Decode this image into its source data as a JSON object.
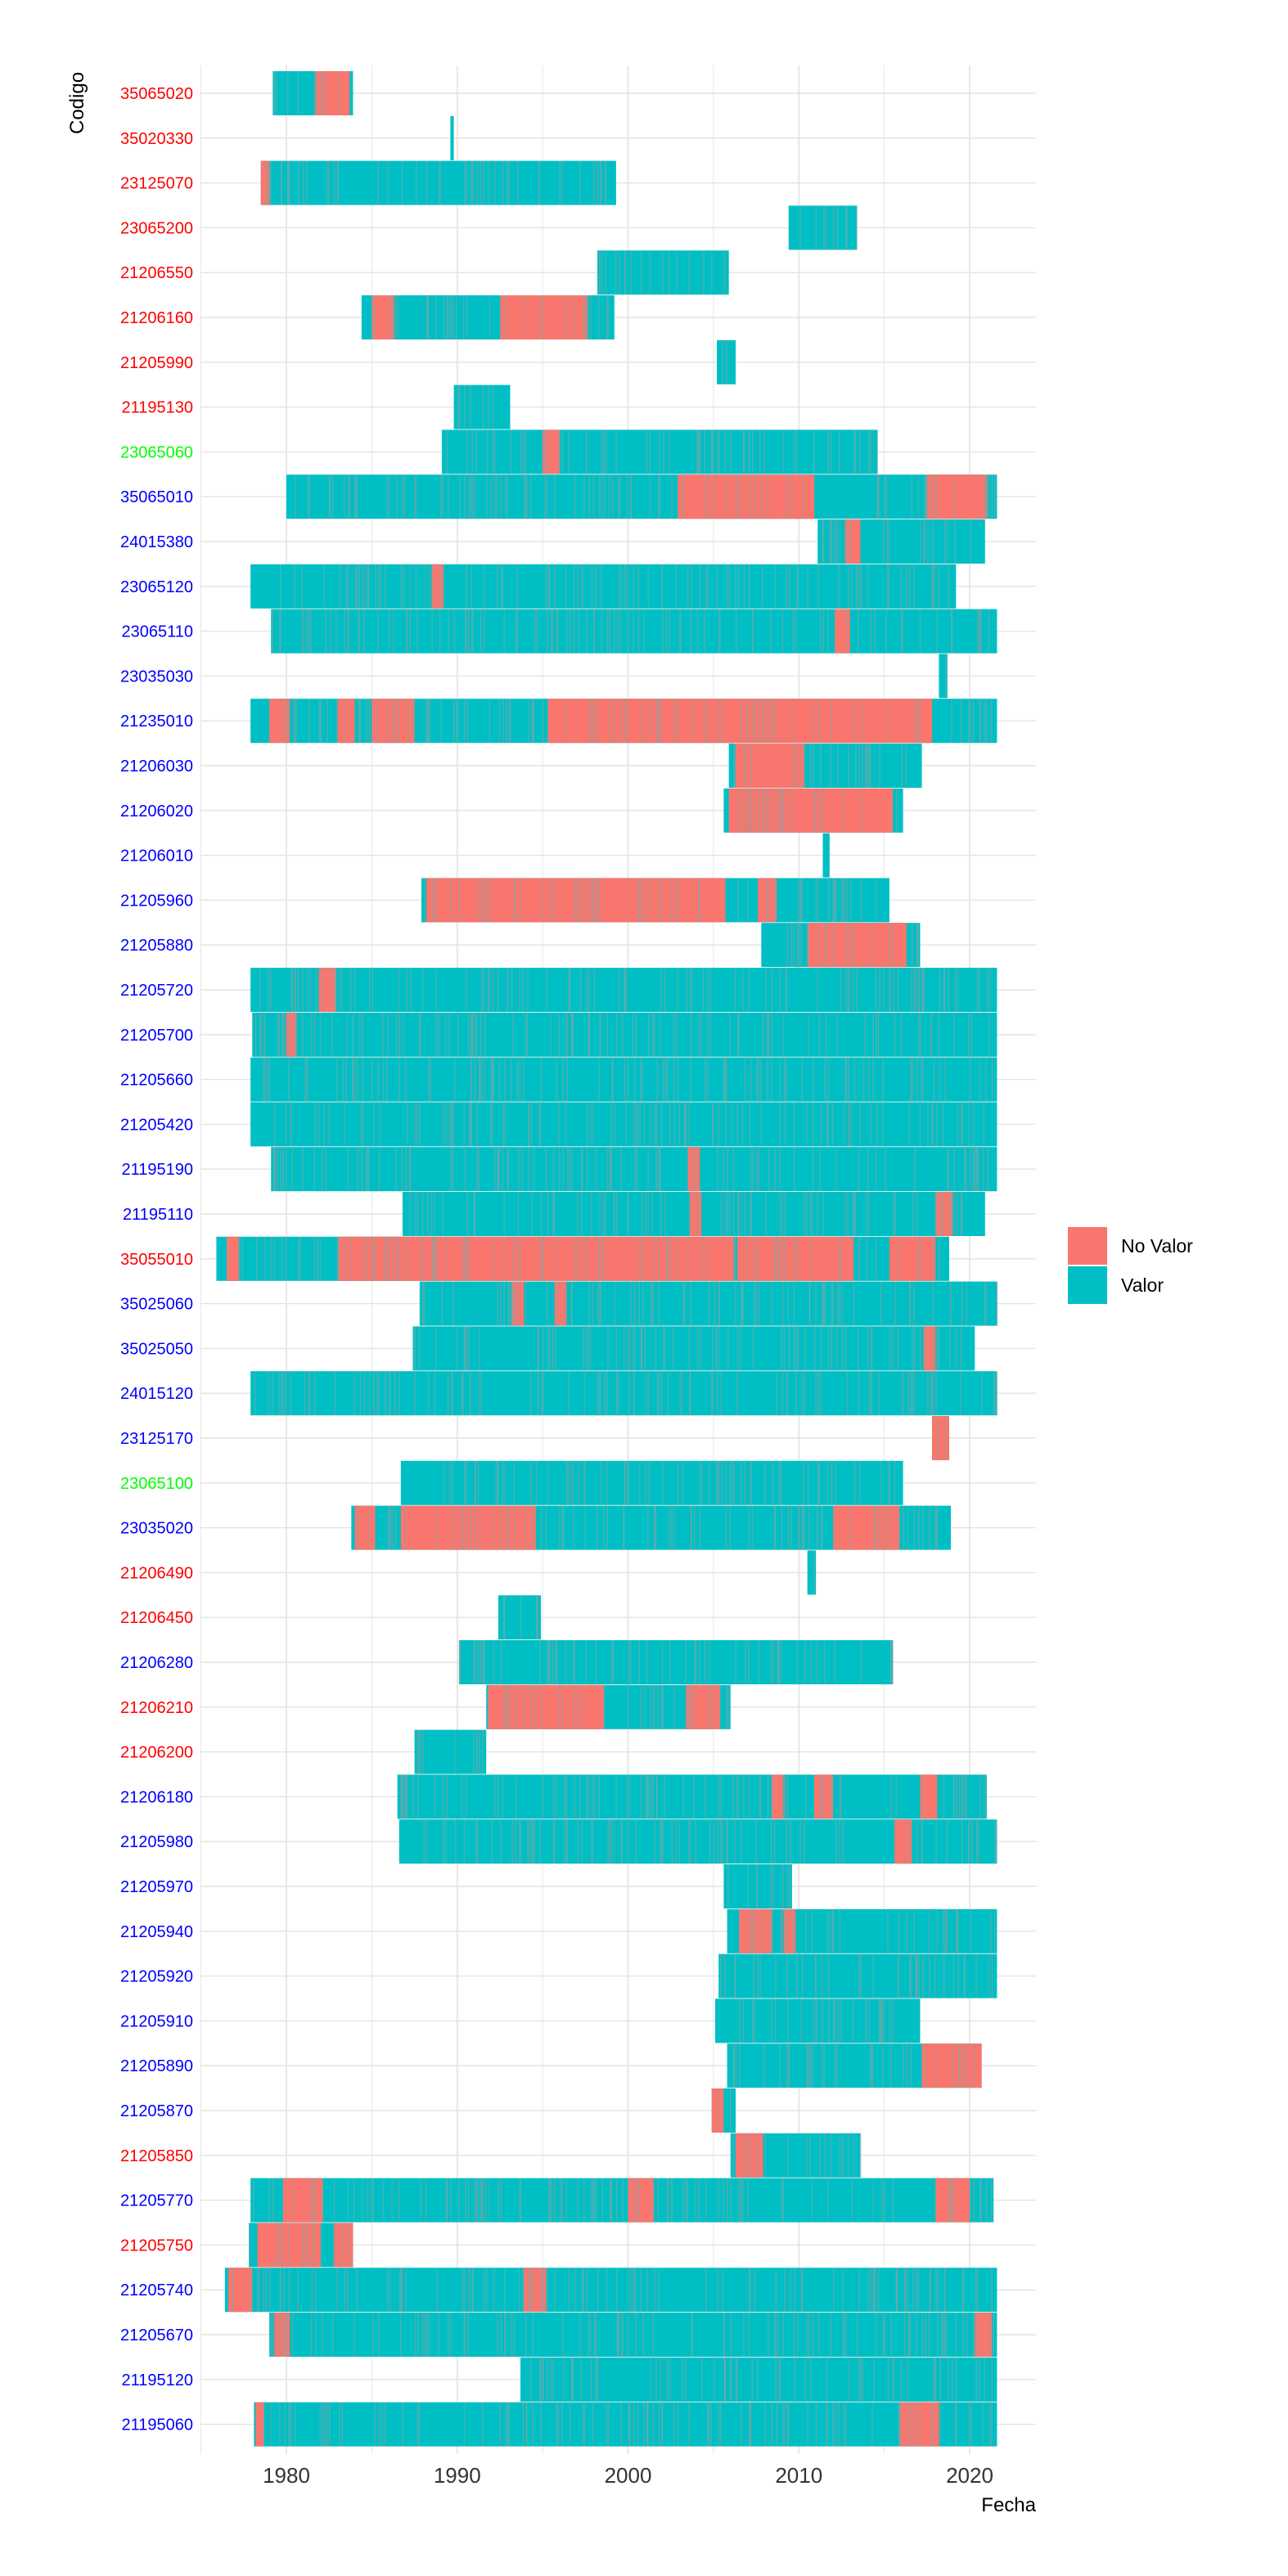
{
  "chart_data": {
    "type": "timeline",
    "ylabel": "Codigo",
    "xlabel": "Fecha",
    "xlim": [
      1975,
      2024
    ],
    "x_ticks": [
      1980,
      1990,
      2000,
      2010,
      2020
    ],
    "legend": {
      "position": "right",
      "items": [
        {
          "label": "No Valor",
          "color": "#F8766D"
        },
        {
          "label": "Valor",
          "color": "#00BFC4"
        }
      ]
    },
    "label_colors": {
      "red": "#FF0000",
      "blue": "#0000FF",
      "green": "#00FF00"
    },
    "series": [
      {
        "code": "35065020",
        "label_color": "red",
        "start": 1979.2,
        "end": 1983.9,
        "no_valor": [
          [
            1981.7,
            1983.7
          ]
        ]
      },
      {
        "code": "35020330",
        "label_color": "red",
        "start": 1989.6,
        "end": 1989.8,
        "no_valor": []
      },
      {
        "code": "23125070",
        "label_color": "red",
        "start": 1978.5,
        "end": 1999.3,
        "no_valor": [
          [
            1978.5,
            1979.0
          ]
        ]
      },
      {
        "code": "23065200",
        "label_color": "red",
        "start": 2009.4,
        "end": 2013.4,
        "no_valor": []
      },
      {
        "code": "21206550",
        "label_color": "red",
        "start": 1998.2,
        "end": 2005.9,
        "no_valor": []
      },
      {
        "code": "21206160",
        "label_color": "red",
        "start": 1984.4,
        "end": 1999.2,
        "no_valor": [
          [
            1985.0,
            1986.3
          ],
          [
            1992.5,
            1997.6
          ]
        ]
      },
      {
        "code": "21205990",
        "label_color": "red",
        "start": 2005.2,
        "end": 2006.3,
        "no_valor": []
      },
      {
        "code": "21195130",
        "label_color": "red",
        "start": 1989.8,
        "end": 1993.1,
        "no_valor": []
      },
      {
        "code": "23065060",
        "label_color": "green",
        "start": 1989.1,
        "end": 2014.6,
        "no_valor": [
          [
            1995.0,
            1996.0
          ]
        ]
      },
      {
        "code": "35065010",
        "label_color": "blue",
        "start": 1980.0,
        "end": 2021.6,
        "no_valor": [
          [
            2002.9,
            2010.9
          ],
          [
            2017.5,
            2021.0
          ]
        ]
      },
      {
        "code": "24015380",
        "label_color": "blue",
        "start": 2011.1,
        "end": 2020.9,
        "no_valor": [
          [
            2012.7,
            2013.6
          ]
        ]
      },
      {
        "code": "23065120",
        "label_color": "blue",
        "start": 1977.9,
        "end": 2019.2,
        "no_valor": [
          [
            1988.5,
            1989.2
          ]
        ]
      },
      {
        "code": "23065110",
        "label_color": "blue",
        "start": 1979.1,
        "end": 2021.6,
        "no_valor": [
          [
            2012.1,
            2013.0
          ]
        ]
      },
      {
        "code": "23035030",
        "label_color": "blue",
        "start": 2018.2,
        "end": 2018.7,
        "no_valor": []
      },
      {
        "code": "21235010",
        "label_color": "blue",
        "start": 1977.9,
        "end": 2021.6,
        "no_valor": [
          [
            1979.0,
            1980.2
          ],
          [
            1983.0,
            1984.0
          ],
          [
            1985.0,
            1987.5
          ],
          [
            1995.3,
            2017.8
          ]
        ]
      },
      {
        "code": "21206030",
        "label_color": "blue",
        "start": 2005.9,
        "end": 2017.2,
        "no_valor": [
          [
            2006.3,
            2010.3
          ]
        ]
      },
      {
        "code": "21206020",
        "label_color": "blue",
        "start": 2005.6,
        "end": 2016.1,
        "no_valor": [
          [
            2005.9,
            2015.5
          ]
        ]
      },
      {
        "code": "21206010",
        "label_color": "blue",
        "start": 2011.4,
        "end": 2011.8,
        "no_valor": []
      },
      {
        "code": "21205960",
        "label_color": "blue",
        "start": 1987.9,
        "end": 2015.3,
        "no_valor": [
          [
            1988.2,
            2005.7
          ],
          [
            2007.6,
            2008.7
          ]
        ]
      },
      {
        "code": "21205880",
        "label_color": "blue",
        "start": 2007.8,
        "end": 2017.1,
        "no_valor": [
          [
            2010.5,
            2016.3
          ]
        ]
      },
      {
        "code": "21205720",
        "label_color": "blue",
        "start": 1977.9,
        "end": 2021.6,
        "no_valor": [
          [
            1981.9,
            1982.9
          ]
        ]
      },
      {
        "code": "21205700",
        "label_color": "blue",
        "start": 1978.0,
        "end": 2021.6,
        "no_valor": [
          [
            1980.0,
            1980.6
          ]
        ]
      },
      {
        "code": "21205660",
        "label_color": "blue",
        "start": 1977.9,
        "end": 2021.6,
        "no_valor": []
      },
      {
        "code": "21205420",
        "label_color": "blue",
        "start": 1977.9,
        "end": 2021.6,
        "no_valor": []
      },
      {
        "code": "21195190",
        "label_color": "blue",
        "start": 1979.1,
        "end": 2021.6,
        "no_valor": [
          [
            2003.5,
            2004.2
          ]
        ]
      },
      {
        "code": "21195110",
        "label_color": "blue",
        "start": 1986.8,
        "end": 2020.9,
        "no_valor": [
          [
            2003.6,
            2004.3
          ],
          [
            2018.0,
            2019.0
          ]
        ]
      },
      {
        "code": "35055010",
        "label_color": "red",
        "start": 1975.9,
        "end": 2018.8,
        "no_valor": [
          [
            1976.5,
            1977.2
          ],
          [
            1983.0,
            2006.2
          ],
          [
            2006.4,
            2013.2
          ],
          [
            2015.3,
            2018.0
          ]
        ]
      },
      {
        "code": "35025060",
        "label_color": "blue",
        "start": 1987.8,
        "end": 2021.6,
        "no_valor": [
          [
            1993.2,
            1993.9
          ],
          [
            1995.7,
            1996.4
          ]
        ]
      },
      {
        "code": "35025050",
        "label_color": "blue",
        "start": 1987.4,
        "end": 2020.3,
        "no_valor": [
          [
            2017.3,
            2018.0
          ]
        ]
      },
      {
        "code": "24015120",
        "label_color": "blue",
        "start": 1977.9,
        "end": 2021.6,
        "no_valor": []
      },
      {
        "code": "23125170",
        "label_color": "blue",
        "start": 2017.8,
        "end": 2018.8,
        "no_valor": [
          [
            2017.8,
            2018.8
          ]
        ]
      },
      {
        "code": "23065100",
        "label_color": "green",
        "start": 1986.7,
        "end": 2016.1,
        "no_valor": []
      },
      {
        "code": "23035020",
        "label_color": "blue",
        "start": 1983.8,
        "end": 2018.9,
        "no_valor": [
          [
            1984.0,
            1985.2
          ],
          [
            1986.7,
            1994.6
          ],
          [
            2012.0,
            2015.9
          ]
        ]
      },
      {
        "code": "21206490",
        "label_color": "red",
        "start": 2010.5,
        "end": 2011.0,
        "no_valor": []
      },
      {
        "code": "21206450",
        "label_color": "red",
        "start": 1992.4,
        "end": 1994.9,
        "no_valor": []
      },
      {
        "code": "21206280",
        "label_color": "blue",
        "start": 1990.1,
        "end": 2015.5,
        "no_valor": []
      },
      {
        "code": "21206210",
        "label_color": "red",
        "start": 1991.7,
        "end": 2006.0,
        "no_valor": [
          [
            1991.8,
            1998.6
          ],
          [
            2003.4,
            2005.4
          ]
        ]
      },
      {
        "code": "21206200",
        "label_color": "red",
        "start": 1987.5,
        "end": 1991.7,
        "no_valor": []
      },
      {
        "code": "21206180",
        "label_color": "blue",
        "start": 1986.5,
        "end": 2021.0,
        "no_valor": [
          [
            2008.4,
            2009.1
          ],
          [
            2010.9,
            2012.0
          ],
          [
            2017.1,
            2018.1
          ]
        ]
      },
      {
        "code": "21205980",
        "label_color": "blue",
        "start": 1986.6,
        "end": 2021.6,
        "no_valor": [
          [
            2015.6,
            2016.6
          ]
        ]
      },
      {
        "code": "21205970",
        "label_color": "blue",
        "start": 2005.6,
        "end": 2009.6,
        "no_valor": []
      },
      {
        "code": "21205940",
        "label_color": "blue",
        "start": 2005.8,
        "end": 2021.6,
        "no_valor": [
          [
            2006.5,
            2008.4
          ],
          [
            2009.1,
            2009.8
          ]
        ]
      },
      {
        "code": "21205920",
        "label_color": "blue",
        "start": 2005.3,
        "end": 2021.6,
        "no_valor": []
      },
      {
        "code": "21205910",
        "label_color": "blue",
        "start": 2005.1,
        "end": 2017.1,
        "no_valor": []
      },
      {
        "code": "21205890",
        "label_color": "blue",
        "start": 2005.8,
        "end": 2020.7,
        "no_valor": [
          [
            2017.2,
            2020.7
          ]
        ]
      },
      {
        "code": "21205870",
        "label_color": "blue",
        "start": 2004.9,
        "end": 2006.3,
        "no_valor": [
          [
            2004.9,
            2005.6
          ]
        ]
      },
      {
        "code": "21205850",
        "label_color": "red",
        "start": 2006.0,
        "end": 2013.6,
        "no_valor": [
          [
            2006.3,
            2007.9
          ]
        ]
      },
      {
        "code": "21205770",
        "label_color": "blue",
        "start": 1977.9,
        "end": 2021.4,
        "no_valor": [
          [
            1979.8,
            1982.1
          ],
          [
            2000.0,
            2001.5
          ],
          [
            2018.0,
            2020.0
          ]
        ]
      },
      {
        "code": "21205750",
        "label_color": "red",
        "start": 1977.8,
        "end": 1983.9,
        "no_valor": [
          [
            1978.3,
            1982.0
          ],
          [
            1982.8,
            1983.9
          ]
        ]
      },
      {
        "code": "21205740",
        "label_color": "blue",
        "start": 1976.4,
        "end": 2021.6,
        "no_valor": [
          [
            1976.6,
            1978.0
          ],
          [
            1993.9,
            1995.2
          ]
        ]
      },
      {
        "code": "21205670",
        "label_color": "blue",
        "start": 1979.0,
        "end": 2021.6,
        "no_valor": [
          [
            1979.3,
            1980.2
          ],
          [
            2020.3,
            2021.3
          ]
        ]
      },
      {
        "code": "21195120",
        "label_color": "blue",
        "start": 1993.7,
        "end": 2021.6,
        "no_valor": []
      },
      {
        "code": "21195060",
        "label_color": "blue",
        "start": 1978.1,
        "end": 2021.6,
        "no_valor": [
          [
            1978.2,
            1978.7
          ],
          [
            2015.9,
            2018.2
          ]
        ]
      }
    ]
  }
}
